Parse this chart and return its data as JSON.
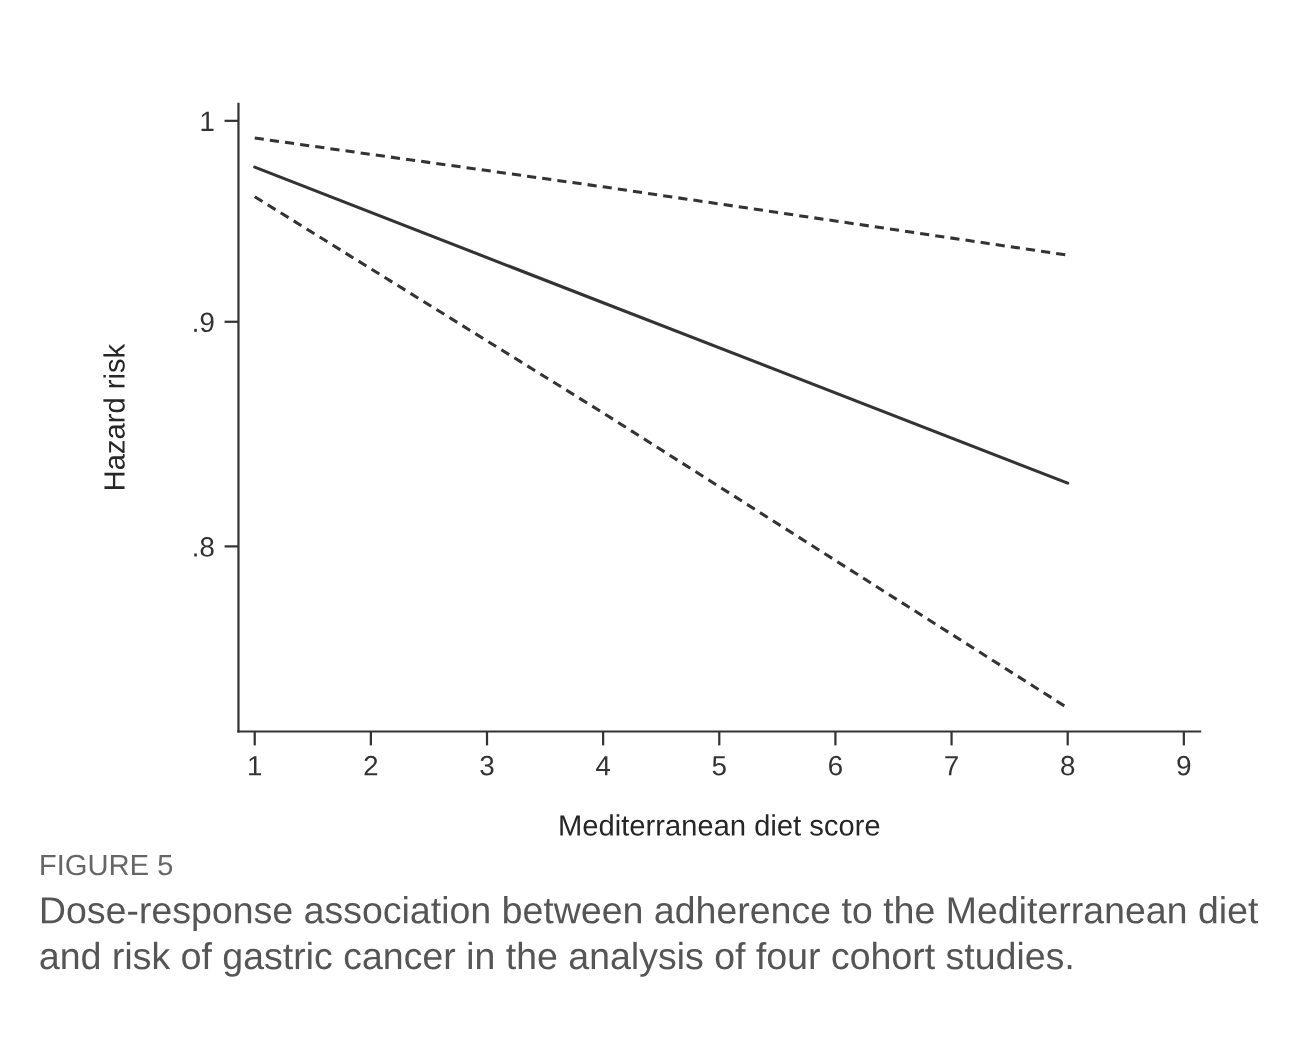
{
  "chart_data": {
    "type": "line",
    "xlabel": "Mediterranean diet score",
    "ylabel": "Hazard risk",
    "log": "y",
    "xlim": [
      0.86,
      9.14
    ],
    "xticks": [
      1,
      2,
      3,
      4,
      5,
      6,
      7,
      8,
      9
    ],
    "ylim": [
      0.726,
      1.009
    ],
    "yticks": [
      {
        "value": 0.8,
        "label": ".8"
      },
      {
        "value": 0.9,
        "label": ".9"
      },
      {
        "value": 1,
        "label": "1"
      }
    ],
    "grid": false,
    "legend": false,
    "marker": "none",
    "series": [
      {
        "color": "#333333",
        "line_style": "solid",
        "x": [
          1,
          4,
          8
        ],
        "values": [
          0.976,
          0.909,
          0.827
        ]
      },
      {
        "color": "#333333",
        "line_style": "dashed",
        "x": [
          1,
          4,
          8
        ],
        "values": [
          0.991,
          0.966,
          0.932
        ]
      },
      {
        "color": "#333333",
        "line_style": "dashed",
        "x": [
          1,
          4,
          8
        ],
        "values": [
          0.961,
          0.858,
          0.735
        ]
      }
    ],
    "annotations": [
      "FIGURE 5",
      "Dose-response association between adherence to the Mediterranean diet and risk of gastric cancer in the analysis of four cohort studies."
    ]
  }
}
